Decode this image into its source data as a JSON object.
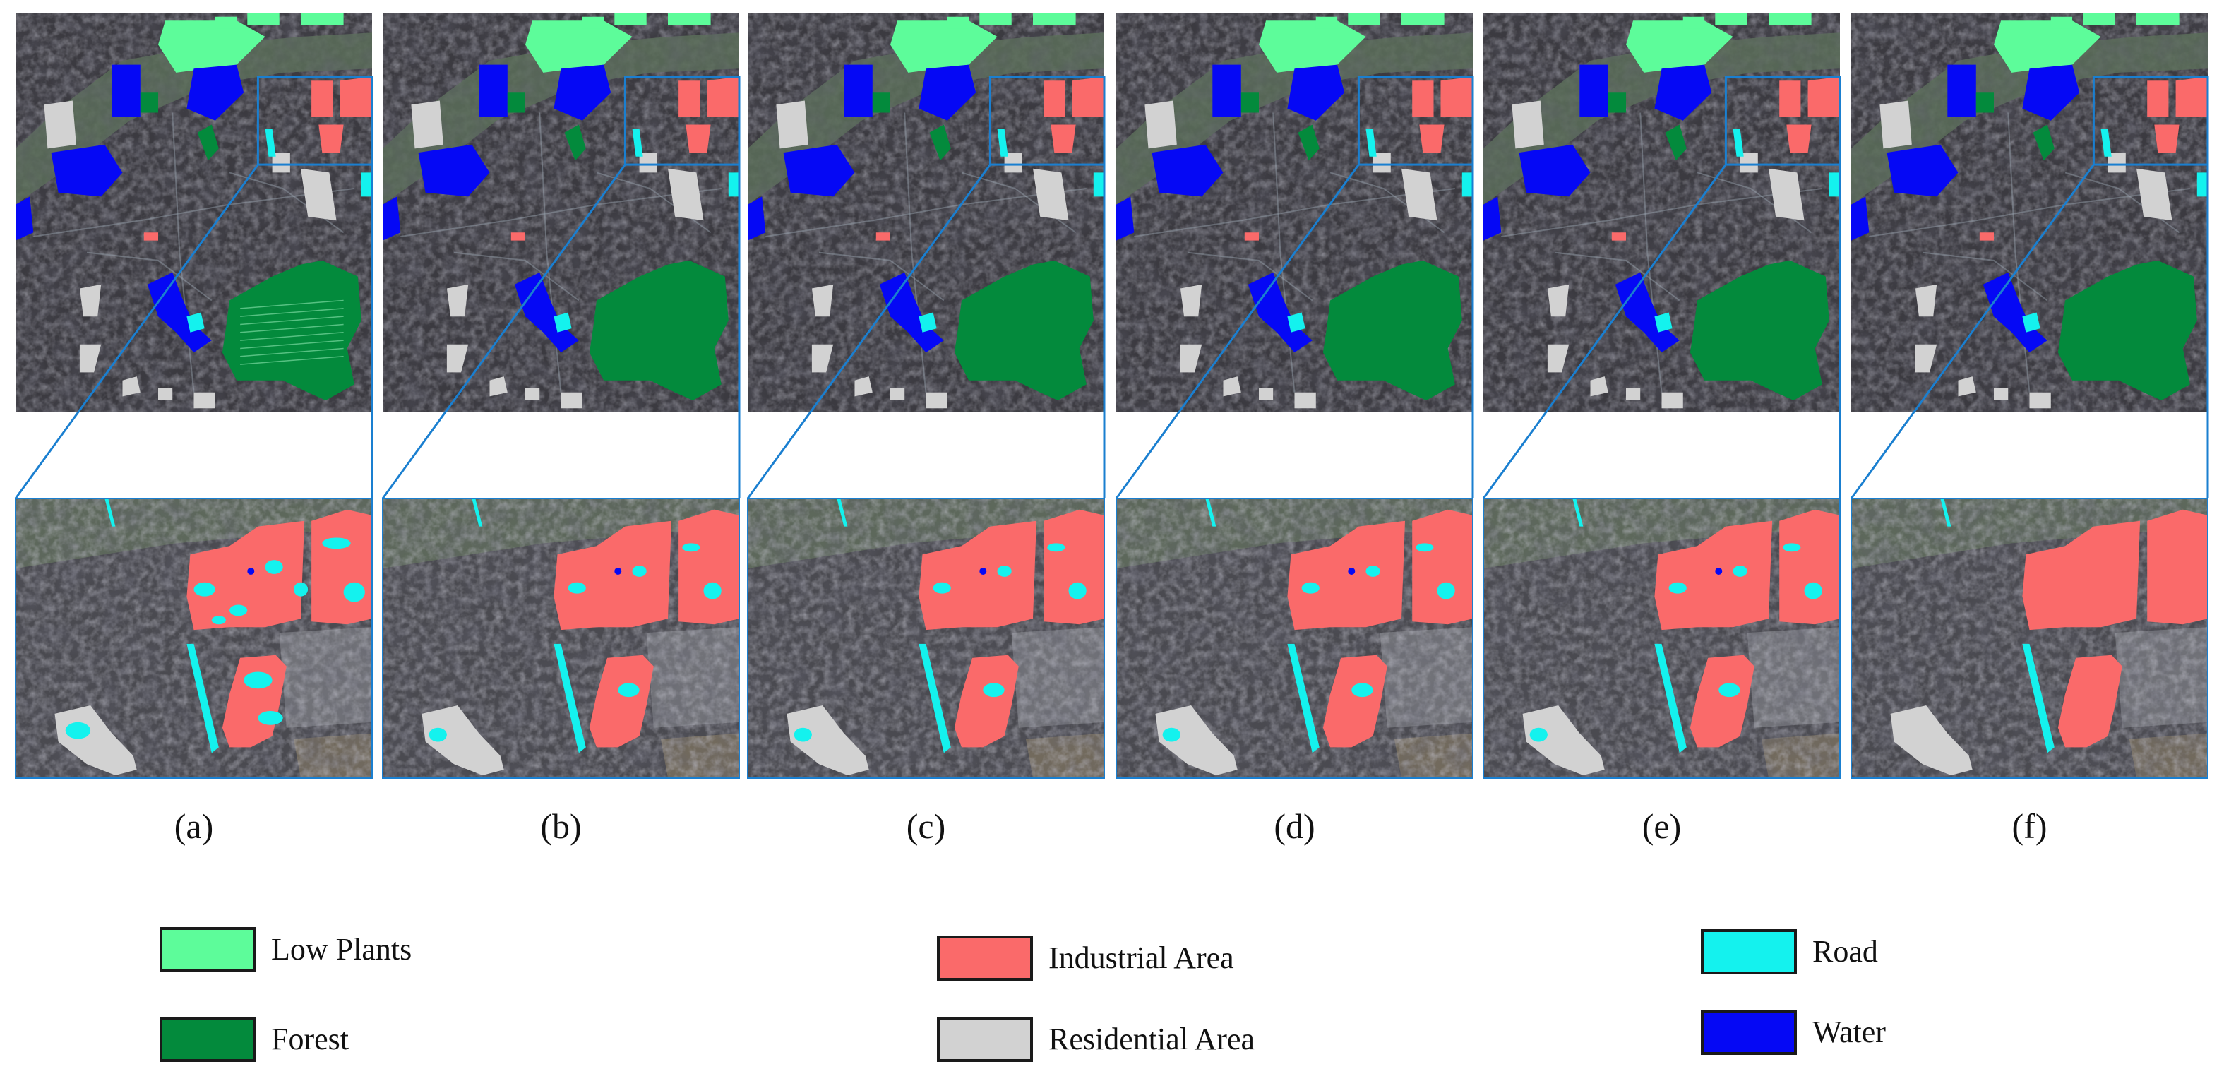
{
  "panels": [
    {
      "label": "(a)",
      "variant": "noisy"
    },
    {
      "label": "(b)",
      "variant": "medium"
    },
    {
      "label": "(c)",
      "variant": "medium"
    },
    {
      "label": "(d)",
      "variant": "medium"
    },
    {
      "label": "(e)",
      "variant": "medium"
    },
    {
      "label": "(f)",
      "variant": "clean"
    }
  ],
  "legend": [
    {
      "key": "low-plants",
      "label": "Low Plants",
      "color": "#5dfc9a"
    },
    {
      "key": "forest",
      "label": "Forest",
      "color": "#038a3c"
    },
    {
      "key": "industrial-area",
      "label": "Industrial Area",
      "color": "#fa6a6a"
    },
    {
      "key": "residential-area",
      "label": "Residential Area",
      "color": "#d2d2d2"
    },
    {
      "key": "road",
      "label": "Road",
      "color": "#14f2ee"
    },
    {
      "key": "water",
      "label": "Water",
      "color": "#0508f5"
    }
  ],
  "colors": {
    "satellite_base": "#3b3a40",
    "river": "#5c6e5a",
    "zoom_outline": "#1a7fd0"
  }
}
